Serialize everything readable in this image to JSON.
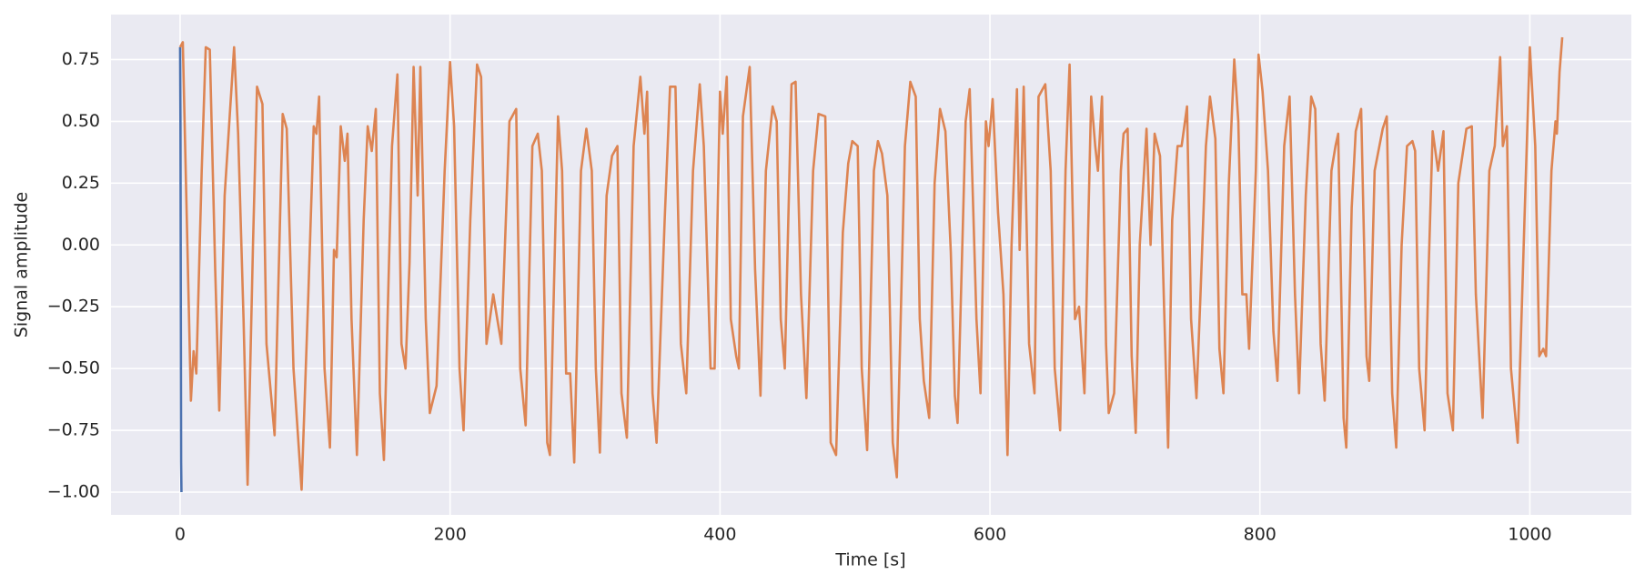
{
  "chart_data": {
    "type": "line",
    "xlabel": "Time [s]",
    "ylabel": "Signal amplitude",
    "xlim": [
      -51.2,
      1075.2
    ],
    "ylim": [
      -1.092,
      0.932
    ],
    "xticks": [
      0,
      200,
      400,
      600,
      800,
      1000
    ],
    "yticks": [
      {
        "value": -1.0,
        "label": "−1.00"
      },
      {
        "value": -0.75,
        "label": "−0.75"
      },
      {
        "value": -0.5,
        "label": "−0.50"
      },
      {
        "value": -0.25,
        "label": "−0.25"
      },
      {
        "value": 0,
        "label": "0.00"
      },
      {
        "value": 0.25,
        "label": "0.25"
      },
      {
        "value": 0.5,
        "label": "0.50"
      },
      0.75
    ],
    "grid": true,
    "background": "#eaeaf2",
    "series": [
      {
        "color": "#4c72b0",
        "x": [
          0,
          0.25,
          0.5,
          0.75,
          1
        ],
        "values": [
          0.8,
          0.5,
          -0.2,
          -0.88,
          -1.0
        ]
      },
      {
        "color": "#dd8452",
        "x": [
          0,
          2,
          8,
          10,
          12,
          16,
          19,
          22,
          26,
          29,
          33,
          40,
          43,
          47,
          50,
          54,
          57,
          61,
          64,
          70,
          76,
          79,
          84,
          90,
          95,
          99,
          101,
          103,
          107,
          111,
          114,
          116,
          119,
          122,
          124,
          127,
          131,
          136,
          139,
          142,
          145,
          148,
          151,
          157,
          161,
          164,
          167,
          170,
          173,
          176,
          178,
          182,
          185,
          190,
          196,
          200,
          203,
          207,
          210,
          215,
          220,
          223,
          227,
          232,
          238,
          244,
          249,
          252,
          256,
          261,
          265,
          268,
          272,
          274,
          280,
          283,
          286,
          289,
          292,
          297,
          301,
          305,
          308,
          311,
          316,
          320,
          324,
          327,
          331,
          336,
          341,
          344,
          346,
          350,
          353,
          359,
          363,
          367,
          371,
          375,
          380,
          385,
          388,
          393,
          396,
          400,
          402,
          405,
          408,
          412,
          414,
          417,
          422,
          426,
          430,
          434,
          439,
          442,
          445,
          448,
          453,
          456,
          460,
          464,
          469,
          473,
          478,
          482,
          486,
          491,
          495,
          498,
          502,
          505,
          509,
          514,
          517,
          520,
          524,
          528,
          531,
          537,
          541,
          545,
          548,
          551,
          555,
          559,
          563,
          567,
          571,
          574,
          576,
          582,
          585,
          590,
          593,
          597,
          599,
          602,
          606,
          607,
          610,
          613,
          616,
          620,
          622,
          625,
          629,
          633,
          636,
          641,
          645,
          648,
          652,
          656,
          659,
          663,
          666,
          670,
          675,
          678,
          680,
          683,
          686,
          688,
          692,
          697,
          699,
          702,
          705,
          708,
          711,
          716,
          719,
          722,
          726,
          729,
          732,
          735,
          739,
          742,
          746,
          749,
          753,
          756,
          760,
          763,
          767,
          770,
          773,
          777,
          781,
          784,
          787,
          790,
          792,
          797,
          799,
          802,
          806,
          810,
          813,
          818,
          822,
          826,
          829,
          834,
          838,
          841,
          845,
          848,
          853,
          856,
          858,
          862,
          864,
          868,
          871,
          875,
          879,
          881,
          885,
          891,
          894,
          898,
          901,
          905,
          909,
          913,
          915,
          918,
          922,
          925,
          928,
          932,
          936,
          939,
          943,
          947,
          953,
          957,
          960,
          965,
          970,
          974,
          978,
          980,
          983,
          986,
          991,
          996,
          1000,
          1004,
          1007,
          1010,
          1012,
          1016,
          1019,
          1020,
          1022,
          1024
        ],
        "values": [
          0.8,
          0.82,
          -0.63,
          -0.43,
          -0.52,
          0.3,
          0.8,
          0.79,
          -0.1,
          -0.67,
          0.2,
          0.8,
          0.45,
          -0.3,
          -0.97,
          0.0,
          0.64,
          0.57,
          -0.4,
          -0.77,
          0.53,
          0.47,
          -0.5,
          -0.99,
          -0.2,
          0.48,
          0.45,
          0.6,
          -0.5,
          -0.82,
          -0.02,
          -0.05,
          0.48,
          0.34,
          0.45,
          -0.3,
          -0.85,
          0.1,
          0.48,
          0.38,
          0.55,
          -0.6,
          -0.87,
          0.4,
          0.69,
          -0.4,
          -0.5,
          -0.07,
          0.72,
          0.2,
          0.72,
          -0.3,
          -0.68,
          -0.57,
          0.3,
          0.74,
          0.48,
          -0.5,
          -0.75,
          0.1,
          0.73,
          0.68,
          -0.4,
          -0.2,
          -0.4,
          0.5,
          0.55,
          -0.5,
          -0.73,
          0.4,
          0.45,
          0.3,
          -0.8,
          -0.85,
          0.52,
          0.3,
          -0.52,
          -0.52,
          -0.88,
          0.3,
          0.47,
          0.3,
          -0.5,
          -0.84,
          0.2,
          0.36,
          0.4,
          -0.6,
          -0.78,
          0.4,
          0.68,
          0.45,
          0.62,
          -0.6,
          -0.8,
          0.1,
          0.64,
          0.64,
          -0.4,
          -0.6,
          0.3,
          0.65,
          0.4,
          -0.5,
          -0.5,
          0.62,
          0.45,
          0.68,
          -0.3,
          -0.45,
          -0.5,
          0.52,
          0.72,
          -0.1,
          -0.61,
          0.3,
          0.56,
          0.5,
          -0.3,
          -0.5,
          0.65,
          0.66,
          -0.2,
          -0.62,
          0.3,
          0.53,
          0.52,
          -0.8,
          -0.85,
          0.05,
          0.33,
          0.42,
          0.4,
          -0.5,
          -0.83,
          0.3,
          0.42,
          0.37,
          0.2,
          -0.8,
          -0.94,
          0.4,
          0.66,
          0.6,
          -0.3,
          -0.55,
          -0.7,
          0.25,
          0.55,
          0.46,
          -0.03,
          -0.61,
          -0.72,
          0.5,
          0.63,
          -0.3,
          -0.6,
          0.5,
          0.4,
          0.59,
          0.13,
          0.05,
          -0.2,
          -0.85,
          0.0,
          0.63,
          -0.02,
          0.64,
          -0.4,
          -0.6,
          0.6,
          0.65,
          0.3,
          -0.5,
          -0.75,
          0.3,
          0.73,
          -0.3,
          -0.25,
          -0.6,
          0.6,
          0.4,
          0.3,
          0.6,
          -0.4,
          -0.68,
          -0.6,
          0.3,
          0.45,
          0.47,
          -0.45,
          -0.76,
          0.0,
          0.47,
          0.0,
          0.45,
          0.36,
          -0.25,
          -0.82,
          0.1,
          0.4,
          0.4,
          0.56,
          -0.3,
          -0.62,
          -0.2,
          0.4,
          0.6,
          0.43,
          -0.42,
          -0.6,
          0.25,
          0.75,
          0.5,
          -0.2,
          -0.2,
          -0.42,
          0.3,
          0.77,
          0.62,
          0.3,
          -0.35,
          -0.55,
          0.4,
          0.6,
          -0.2,
          -0.6,
          0.2,
          0.6,
          0.55,
          -0.4,
          -0.63,
          0.3,
          0.4,
          0.45,
          -0.7,
          -0.82,
          0.15,
          0.46,
          0.55,
          -0.45,
          -0.55,
          0.3,
          0.47,
          0.52,
          -0.6,
          -0.82,
          0.0,
          0.4,
          0.42,
          0.38,
          -0.5,
          -0.75,
          -0.1,
          0.46,
          0.3,
          0.46,
          -0.6,
          -0.75,
          0.25,
          0.47,
          0.48,
          -0.2,
          -0.7,
          0.3,
          0.4,
          0.76,
          0.4,
          0.48,
          -0.5,
          -0.8,
          0.1,
          0.8,
          0.4,
          -0.45,
          -0.42,
          -0.45,
          0.3,
          0.5,
          0.45,
          0.7,
          0.84
        ]
      }
    ]
  }
}
